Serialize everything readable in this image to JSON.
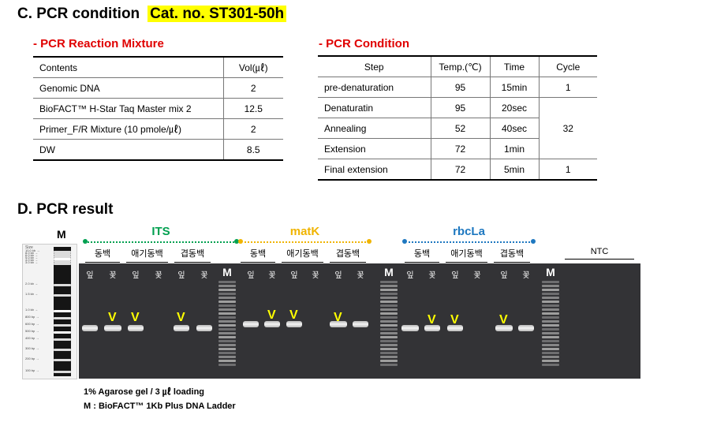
{
  "section_c": {
    "title": "C. PCR condition",
    "cat_no": "Cat. no. ST301-50h"
  },
  "mixture": {
    "title": "- PCR Reaction Mixture",
    "headers": [
      "Contents",
      "Vol(㎕)"
    ],
    "rows": [
      [
        "Genomic DNA",
        "2"
      ],
      [
        "BioFACT™ H-Star Taq Master mix 2",
        "12.5"
      ],
      [
        "Primer_F/R Mixture (10 pmole/㎕)",
        "2"
      ],
      [
        "DW",
        "8.5"
      ]
    ]
  },
  "condition": {
    "title": "- PCR Condition",
    "headers": [
      "Step",
      "Temp.(℃)",
      "Time",
      "Cycle"
    ],
    "rows": [
      [
        "pre-denaturation",
        "95",
        "15min",
        "1"
      ],
      [
        "Denaturatin",
        "95",
        "20sec",
        "32"
      ],
      [
        "Annealing",
        "52",
        "40sec",
        ""
      ],
      [
        "Extension",
        "72",
        "1min",
        ""
      ],
      [
        "Final extension",
        "72",
        "5min",
        "1"
      ]
    ]
  },
  "section_d": {
    "title": "D. PCR result"
  },
  "ladder": {
    "title": "M",
    "size_label": "Size",
    "markers": [
      "10.0 kb",
      "8.0 kb",
      "6.0 kb",
      "5.0 kb",
      "4.0 kb",
      "3.0 kb",
      "2.0 kb",
      "1.5 kb",
      "1.0 kb",
      "800 bp",
      "600 bp",
      "500 bp",
      "400 bp",
      "300 bp",
      "200 bp",
      "100 bp"
    ]
  },
  "gel": {
    "groups": [
      {
        "name": "ITS",
        "color": "#00a050",
        "samples": [
          "동백",
          "애기동백",
          "겹동백"
        ]
      },
      {
        "name": "matK",
        "color": "#f0b400",
        "samples": [
          "동백",
          "애기동백",
          "겹동백"
        ]
      },
      {
        "name": "rbcLa",
        "color": "#1e78c0",
        "samples": [
          "동백",
          "애기동백",
          "겹동백"
        ]
      }
    ],
    "ntc_label": "NTC",
    "lane_leaf": "잎",
    "lane_flower": "꽃",
    "marker_lane": "M",
    "check_mark": "V"
  },
  "footnotes": {
    "line1": "1% Agarose gel / 3 ㎕ loading",
    "line2": "M :  BioFACT™ 1Kb Plus DNA Ladder"
  },
  "colors": {
    "highlight": "#ffff00",
    "subtitle": "#e00000",
    "mark": "#ffff00"
  }
}
